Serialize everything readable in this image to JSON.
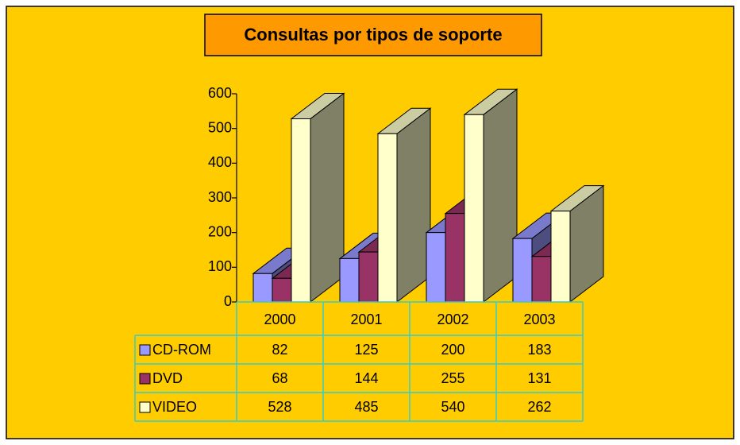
{
  "chart_data": {
    "type": "bar",
    "title": "Consultas por tipos de soporte",
    "categories": [
      "2000",
      "2001",
      "2002",
      "2003"
    ],
    "series": [
      {
        "name": "CD-ROM",
        "color": "#9999ff",
        "values": [
          82,
          125,
          200,
          183
        ]
      },
      {
        "name": "DVD",
        "color": "#993366",
        "values": [
          68,
          144,
          255,
          131
        ]
      },
      {
        "name": "VIDEO",
        "color": "#ffffcc",
        "values": [
          528,
          485,
          540,
          262
        ]
      }
    ],
    "ylim": [
      0,
      600
    ],
    "yticks": [
      0,
      100,
      200,
      300,
      400,
      500,
      600
    ]
  }
}
